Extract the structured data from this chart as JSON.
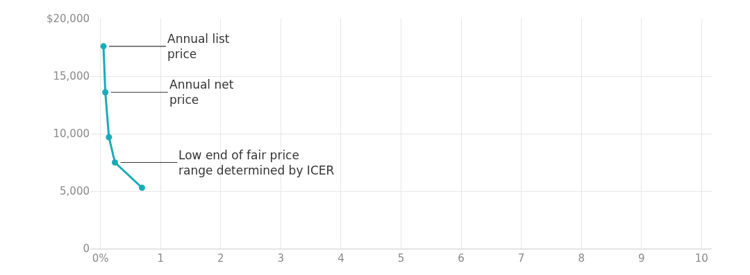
{
  "chart_data": {
    "type": "line",
    "x": [
      0.05,
      0.08,
      0.14,
      0.24,
      0.69
    ],
    "series": [
      {
        "color": "#1aabb8",
        "values": [
          17600,
          13600,
          9700,
          7500,
          5300
        ]
      }
    ],
    "xlim": [
      -0.17,
      10.17
    ],
    "xticks": [
      {
        "value": 0,
        "label": "0%"
      },
      1,
      2,
      3,
      4,
      5,
      6,
      7,
      8,
      9,
      10
    ],
    "ylim": [
      0,
      20000
    ],
    "yticks": [
      0,
      {
        "value": 5000,
        "label": "5,000"
      },
      {
        "value": 10000,
        "label": "10,000"
      },
      {
        "value": 15000,
        "label": "15,000"
      },
      {
        "value": 20000,
        "label": "$20,000"
      }
    ],
    "grid": true,
    "marker": "circle",
    "line_style": "solid",
    "annotations": [
      {
        "text": "Annual list\nprice",
        "x": 0.05,
        "y": 17600
      },
      {
        "text": "Annual net\nprice",
        "x": 0.08,
        "y": 13600
      },
      {
        "text": "Low end of fair price\nrange determined by ICER",
        "x": 0.24,
        "y": 7500
      }
    ]
  }
}
